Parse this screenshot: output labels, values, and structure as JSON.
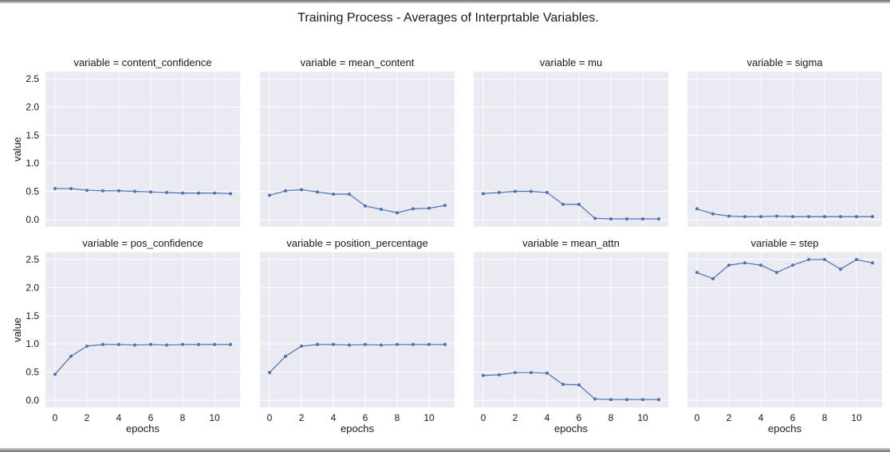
{
  "chart_data": {
    "type": "line",
    "title": "Training Process - Averages of Interprtable Variables.",
    "xlabel": "epochs",
    "ylabel": "value",
    "facet_prefix": "variable = ",
    "x": [
      0,
      1,
      2,
      3,
      4,
      5,
      6,
      7,
      8,
      9,
      10,
      11
    ],
    "xticks": [
      0,
      2,
      4,
      6,
      8,
      10
    ],
    "yticks": [
      0.0,
      0.5,
      1.0,
      1.5,
      2.0,
      2.5
    ],
    "ytick_labels": [
      "0.0",
      "0.5",
      "1.0",
      "1.5",
      "2.0",
      "2.5"
    ],
    "xlim": [
      -0.6,
      11.6
    ],
    "ylim": [
      -0.13,
      2.63
    ],
    "grid": true,
    "series_color": "#4c72b0",
    "background_color": "#eaeaf2",
    "panels": [
      {
        "variable": "content_confidence",
        "values": [
          0.55,
          0.55,
          0.52,
          0.51,
          0.51,
          0.5,
          0.49,
          0.48,
          0.47,
          0.47,
          0.47,
          0.46
        ]
      },
      {
        "variable": "mean_content",
        "values": [
          0.43,
          0.51,
          0.53,
          0.49,
          0.45,
          0.45,
          0.24,
          0.18,
          0.12,
          0.19,
          0.2,
          0.25
        ]
      },
      {
        "variable": "mu",
        "values": [
          0.46,
          0.48,
          0.5,
          0.5,
          0.48,
          0.27,
          0.27,
          0.02,
          0.01,
          0.01,
          0.01,
          0.01
        ]
      },
      {
        "variable": "sigma",
        "values": [
          0.19,
          0.1,
          0.06,
          0.05,
          0.05,
          0.06,
          0.05,
          0.05,
          0.05,
          0.05,
          0.05,
          0.05
        ]
      },
      {
        "variable": "pos_confidence",
        "values": [
          0.46,
          0.78,
          0.96,
          0.99,
          0.99,
          0.98,
          0.99,
          0.98,
          0.99,
          0.99,
          0.99,
          0.99
        ]
      },
      {
        "variable": "position_percentage",
        "values": [
          0.49,
          0.78,
          0.96,
          0.99,
          0.99,
          0.98,
          0.99,
          0.98,
          0.99,
          0.99,
          0.99,
          0.99
        ]
      },
      {
        "variable": "mean_attn",
        "values": [
          0.44,
          0.45,
          0.49,
          0.49,
          0.48,
          0.28,
          0.27,
          0.02,
          0.01,
          0.01,
          0.01,
          0.01
        ]
      },
      {
        "variable": "step",
        "values": [
          2.27,
          2.16,
          2.4,
          2.44,
          2.4,
          2.27,
          2.4,
          2.5,
          2.5,
          2.33,
          2.5,
          2.44
        ]
      }
    ]
  }
}
